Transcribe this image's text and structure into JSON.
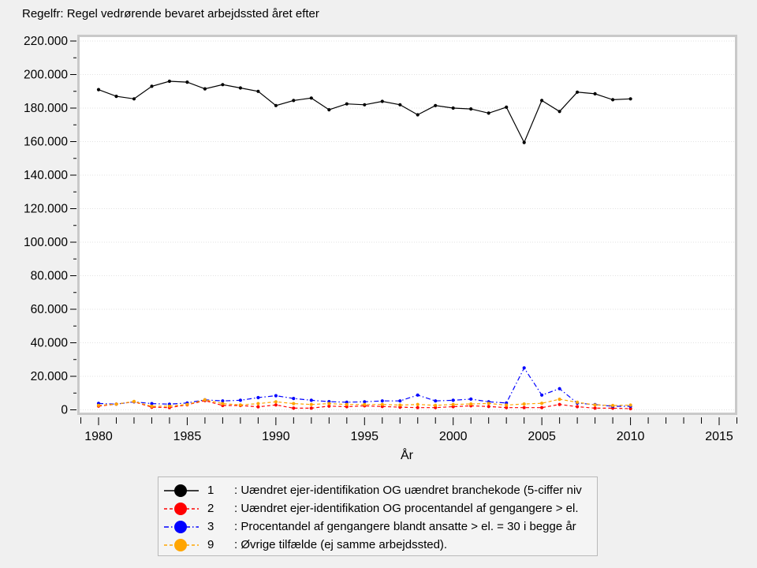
{
  "title": "Regelfr: Regel vedrørende bevaret arbejdssted året efter",
  "colors": {
    "page_background": "#f0f0f0",
    "plot_background": "#ffffff",
    "plot_frame": "#c9c9c9",
    "gridline": "#e2e2e2",
    "tick": "#000000",
    "text": "#000000",
    "legend_background": "#f4f4f4",
    "legend_border": "#b9b9b9"
  },
  "chart_data": {
    "type": "line",
    "title": "Regelfr: Regel vedrørende bevaret arbejdssted året efter",
    "xlabel": "År",
    "ylabel": "",
    "xlim": [
      1978.8,
      2016.2
    ],
    "ylim": [
      0,
      220000
    ],
    "grid": "horizontal-dotted",
    "legend_position": "bottom",
    "x_ticks": [
      1980,
      1985,
      1990,
      1995,
      2000,
      2005,
      2010,
      2015
    ],
    "x_minor_tick_step": 1,
    "x_minor_tick_range": [
      1979,
      2016
    ],
    "y_ticks": [
      {
        "value": 0,
        "label": "0"
      },
      {
        "value": 20000,
        "label": "20.000"
      },
      {
        "value": 40000,
        "label": "40.000"
      },
      {
        "value": 60000,
        "label": "60.000"
      },
      {
        "value": 80000,
        "label": "80.000"
      },
      {
        "value": 100000,
        "label": "100.000"
      },
      {
        "value": 120000,
        "label": "120.000"
      },
      {
        "value": 140000,
        "label": "140.000"
      },
      {
        "value": 160000,
        "label": "160.000"
      },
      {
        "value": 180000,
        "label": "180.000"
      },
      {
        "value": 200000,
        "label": "200.000"
      },
      {
        "value": 220000,
        "label": "220.000"
      }
    ],
    "y_minor_tick_step": 10000,
    "x": [
      1980,
      1981,
      1982,
      1983,
      1984,
      1985,
      1986,
      1987,
      1988,
      1989,
      1990,
      1991,
      1992,
      1993,
      1994,
      1995,
      1996,
      1997,
      1998,
      1999,
      2000,
      2001,
      2002,
      2003,
      2004,
      2005,
      2006,
      2007,
      2008,
      2009,
      2010
    ],
    "series": [
      {
        "key": "1",
        "label": ": Uændret ejer-identifikation OG uændret branchekode (5-ciffer niv",
        "color": "#000000",
        "line_style": "solid",
        "values": [
          191000,
          187000,
          185500,
          193000,
          196000,
          195500,
          191500,
          194000,
          192000,
          190000,
          181500,
          184500,
          186000,
          179000,
          182500,
          182000,
          184000,
          182000,
          176000,
          181500,
          180000,
          179500,
          177000,
          180500,
          159500,
          184500,
          178000,
          189500,
          188500,
          185000,
          185500
        ]
      },
      {
        "key": "2",
        "label": ": Uændret ejer-identifikation OG procentandel af gengangere > el.",
        "color": "#ff0000",
        "line_style": "dash",
        "values": [
          2200,
          3400,
          4800,
          1600,
          1300,
          3000,
          5500,
          2600,
          2600,
          1800,
          2900,
          1000,
          1000,
          2200,
          1900,
          2400,
          2000,
          1600,
          1300,
          1300,
          1900,
          2400,
          2000,
          1300,
          1300,
          1300,
          3200,
          1900,
          1000,
          1000,
          700
        ]
      },
      {
        "key": "3",
        "label": ": Procentandel af gengangere blandt ansatte > el. = 30 i begge år",
        "color": "#0000ff",
        "line_style": "dashdot",
        "values": [
          3800,
          3400,
          4800,
          3700,
          3400,
          4100,
          6000,
          5300,
          5700,
          7300,
          8400,
          6800,
          5700,
          4900,
          4500,
          4800,
          5300,
          5300,
          8800,
          5300,
          5700,
          6400,
          4800,
          4100,
          25000,
          8800,
          12600,
          4000,
          3100,
          2100,
          2100
        ]
      },
      {
        "key": "9",
        "label": ": Øvrige tilfælde (ej samme arbejdssted).",
        "color": "#ffa500",
        "line_style": "dash",
        "values": [
          2700,
          3400,
          5000,
          2100,
          2200,
          3200,
          6000,
          3700,
          2900,
          3700,
          4800,
          3700,
          3200,
          3700,
          3200,
          3200,
          3200,
          2800,
          3200,
          2700,
          3200,
          3500,
          3800,
          2800,
          3500,
          3900,
          6300,
          4500,
          2900,
          2600,
          2800
        ]
      }
    ]
  }
}
